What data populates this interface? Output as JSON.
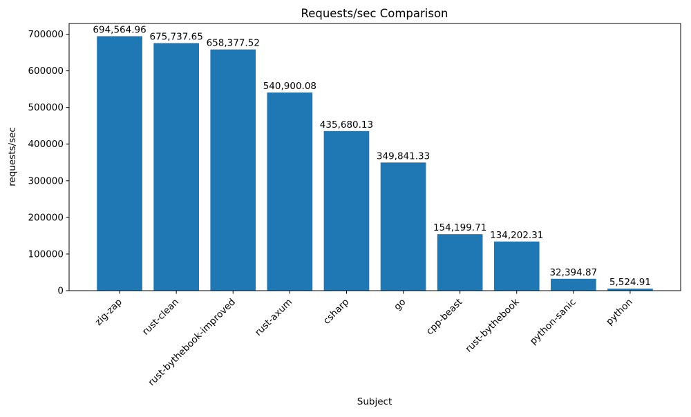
{
  "chart_data": {
    "type": "bar",
    "title": "Requests/sec Comparison",
    "xlabel": "Subject",
    "ylabel": "requests/sec",
    "categories": [
      "zig-zap",
      "rust-clean",
      "rust-bythebook-improved",
      "rust-axum",
      "csharp",
      "go",
      "cpp-beast",
      "rust-bythebook",
      "python-sanic",
      "python"
    ],
    "values": [
      694564.96,
      675737.65,
      658377.52,
      540900.08,
      435680.13,
      349841.33,
      154199.71,
      134202.31,
      32394.87,
      5524.91
    ],
    "value_labels": [
      "694,564.96",
      "675,737.65",
      "658,377.52",
      "540,900.08",
      "435,680.13",
      "349,841.33",
      "154,199.71",
      "134,202.31",
      "32,394.87",
      "5,524.91"
    ],
    "yticks": [
      0,
      100000,
      200000,
      300000,
      400000,
      500000,
      600000,
      700000
    ],
    "ytick_labels": [
      "0",
      "100000",
      "200000",
      "300000",
      "400000",
      "500000",
      "600000",
      "700000"
    ],
    "ylim": [
      0,
      729293.2
    ],
    "bar_color": "#1f77b4",
    "axis_color": "#000000",
    "grid": false,
    "legend": null,
    "x_tick_rotation_deg": 45
  }
}
